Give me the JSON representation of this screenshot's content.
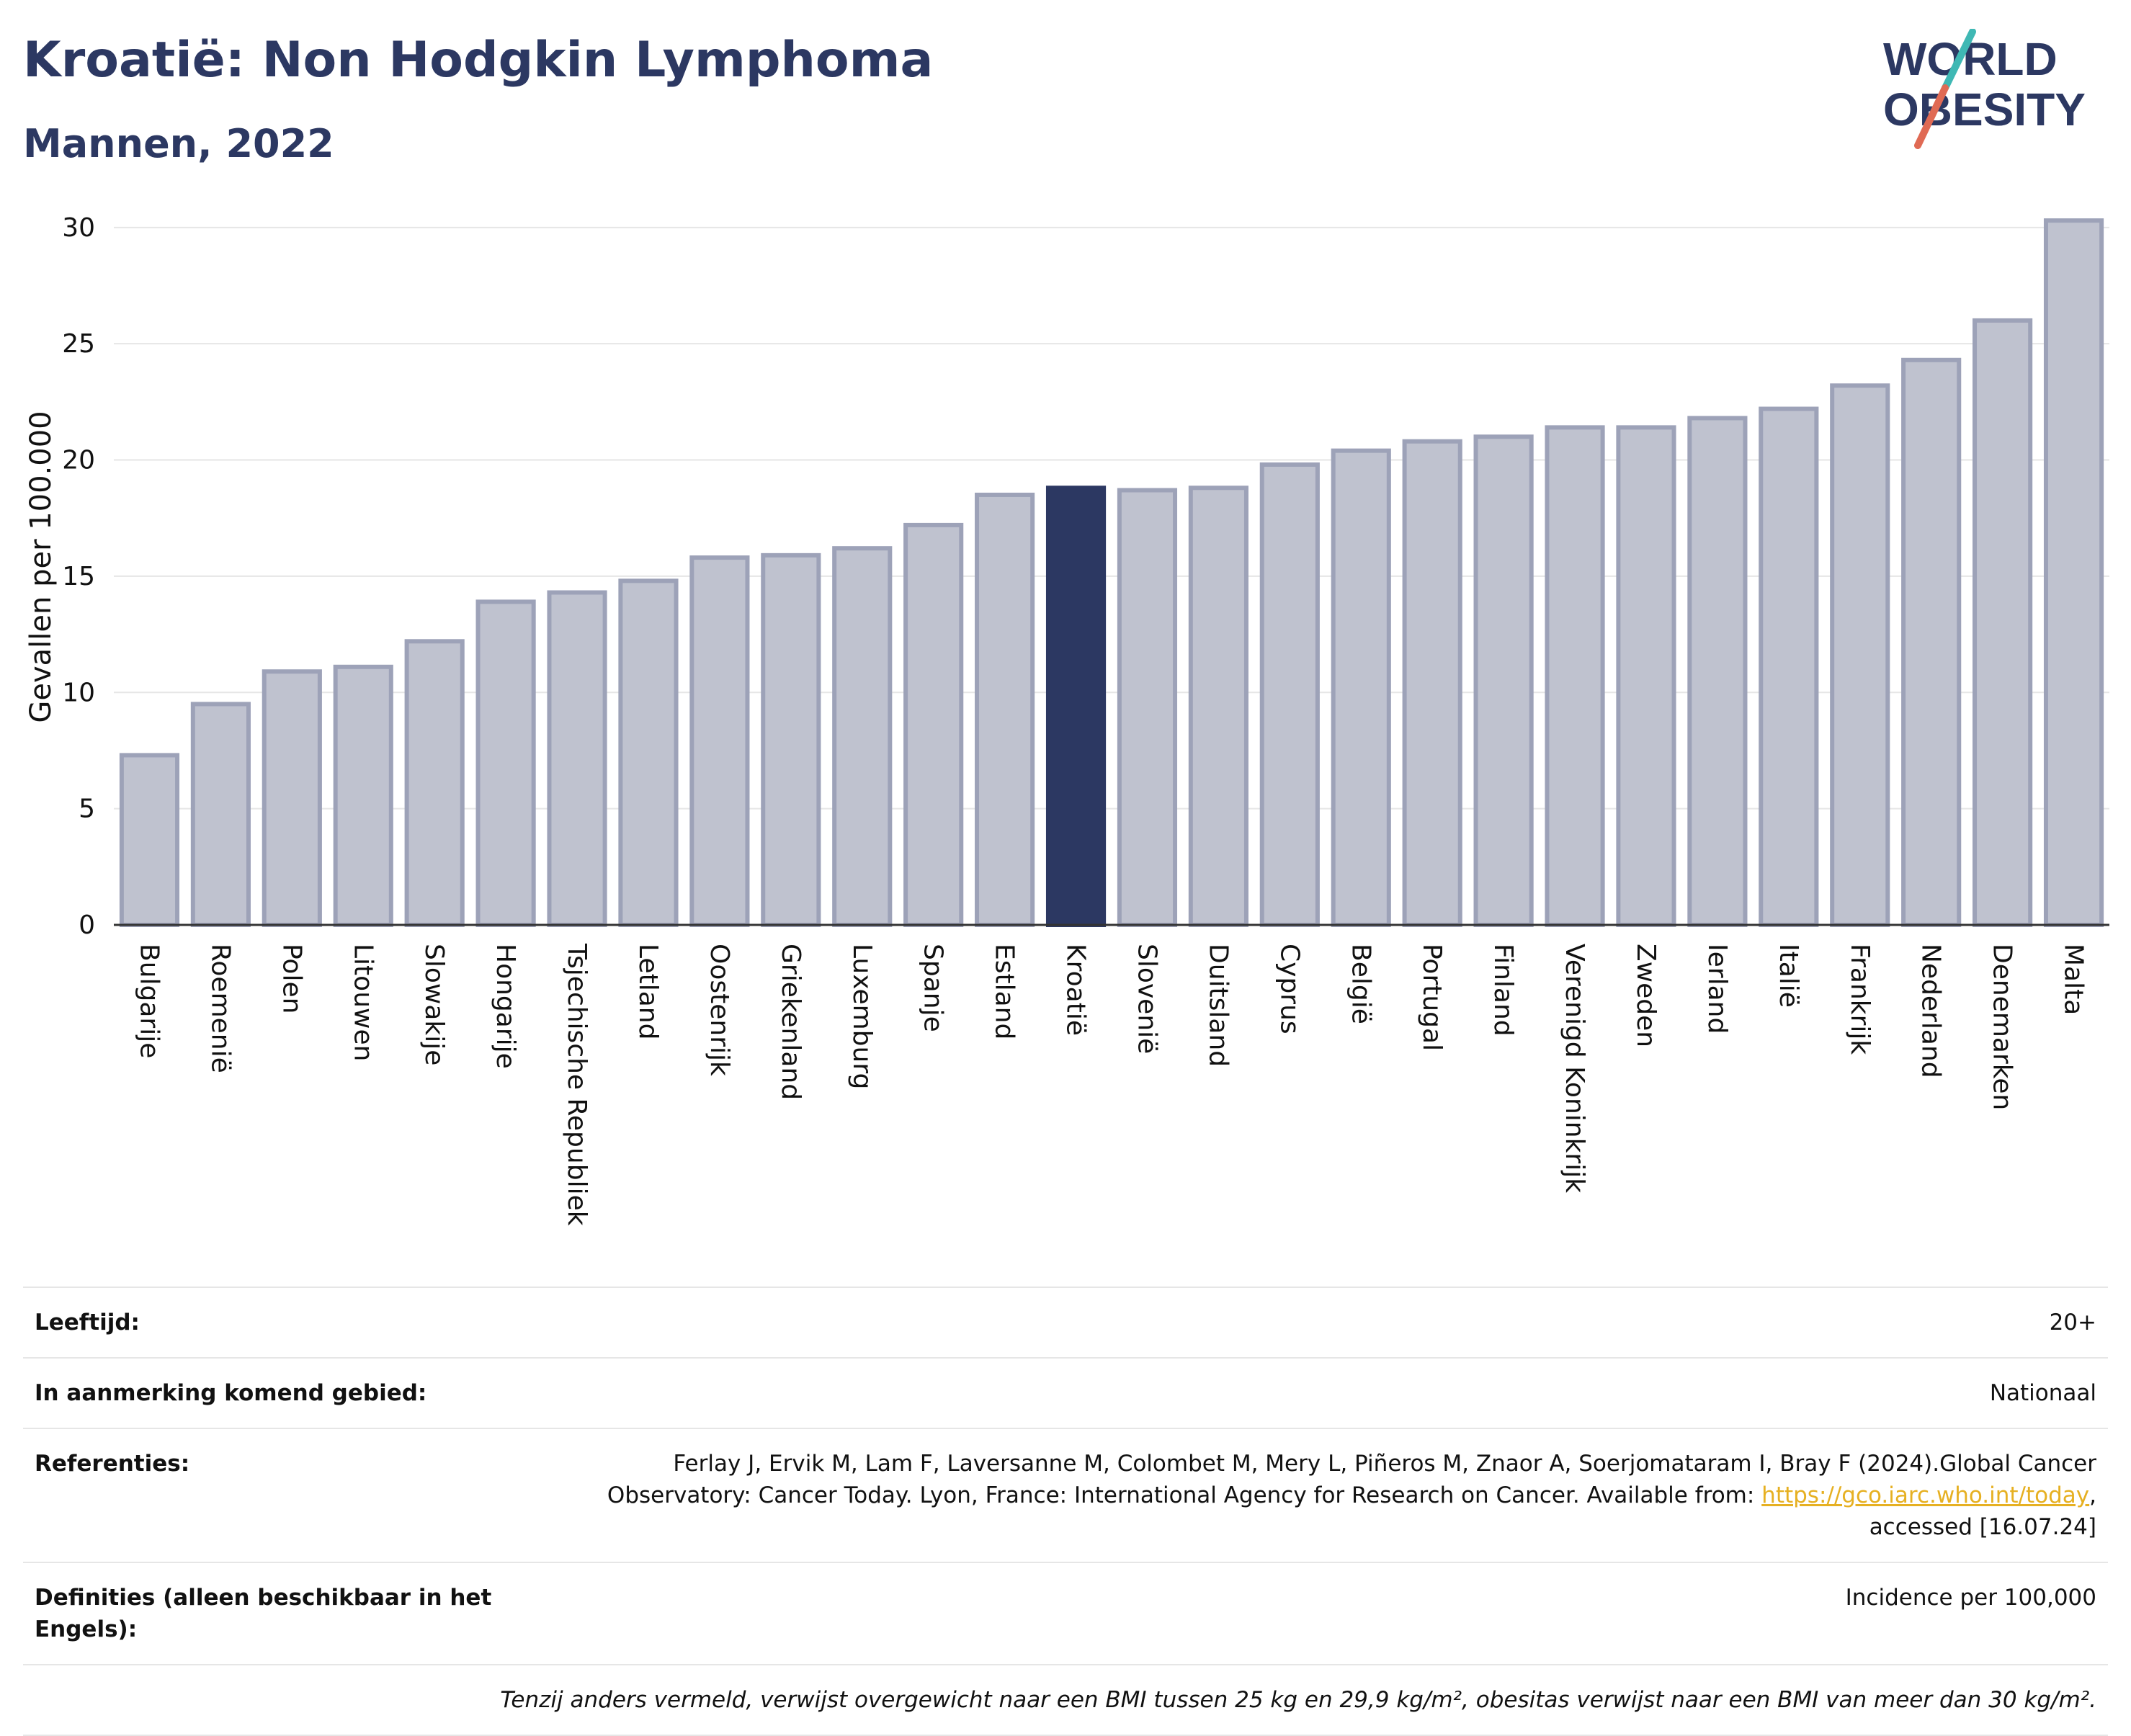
{
  "header": {
    "title": "Kroatië: Non Hodgkin Lymphoma",
    "subtitle": "Mannen, 2022"
  },
  "logo": {
    "line1": "WORLD",
    "line2": "OBESITY",
    "colors": {
      "text": "#2c3862",
      "slash_top": "#3fb8b4",
      "slash_bottom": "#e06a54"
    }
  },
  "chart_data": {
    "type": "bar",
    "ylabel": "Gevallen per 100.000",
    "ylim": [
      0,
      30
    ],
    "yticks": [
      "0",
      "5",
      "10",
      "15",
      "20",
      "25",
      "30"
    ],
    "grid": true,
    "highlight": "Kroatië",
    "colors": {
      "bar": "#bfc2cf",
      "bar_border": "#9da2b8",
      "highlight": "#2c3862"
    },
    "categories": [
      "Bulgarije",
      "Roemenië",
      "Polen",
      "Litouwen",
      "Slowakije",
      "Hongarije",
      "Tsjechische Republiek",
      "Letland",
      "Oostenrijk",
      "Griekenland",
      "Luxemburg",
      "Spanje",
      "Estland",
      "Kroatië",
      "Slovenië",
      "Duitsland",
      "Cyprus",
      "België",
      "Portugal",
      "Finland",
      "Verenigd Koninkrijk",
      "Zweden",
      "Ierland",
      "Italië",
      "Frankrijk",
      "Nederland",
      "Denemarken",
      "Malta"
    ],
    "values": [
      7.3,
      9.5,
      10.9,
      11.1,
      12.2,
      13.9,
      14.3,
      14.8,
      15.8,
      15.9,
      16.2,
      17.2,
      18.5,
      18.8,
      18.7,
      18.8,
      19.8,
      20.4,
      20.8,
      21.0,
      21.4,
      21.4,
      21.8,
      22.2,
      23.2,
      24.3,
      26.0,
      30.3
    ]
  },
  "info": {
    "age": {
      "label": "Leeftijd:",
      "value": "20+"
    },
    "area": {
      "label": "In aanmerking komend gebied:",
      "value": "Nationaal"
    },
    "refs": {
      "label": "Referenties:",
      "text1": "Ferlay J, Ervik M, Lam F, Laversanne M, Colombet M, Mery L, Piñeros M, Znaor A, Soerjomataram I, Bray F (2024).Global Cancer",
      "text2": "Observatory: Cancer Today. Lyon, France: International Agency for Research on Cancer. Available from: ",
      "link": "https://gco.iarc.who.int/today",
      "text3": ",",
      "text4": "accessed [16.07.24]"
    },
    "definitions": {
      "label": "Definities (alleen beschikbaar in het Engels):",
      "value": "Incidence per 100,000"
    },
    "note": "Tenzij anders vermeld, verwijst overgewicht naar een BMI tussen 25 kg en 29,9 kg/m², obesitas verwijst naar een BMI van meer dan 30 kg/m²."
  }
}
